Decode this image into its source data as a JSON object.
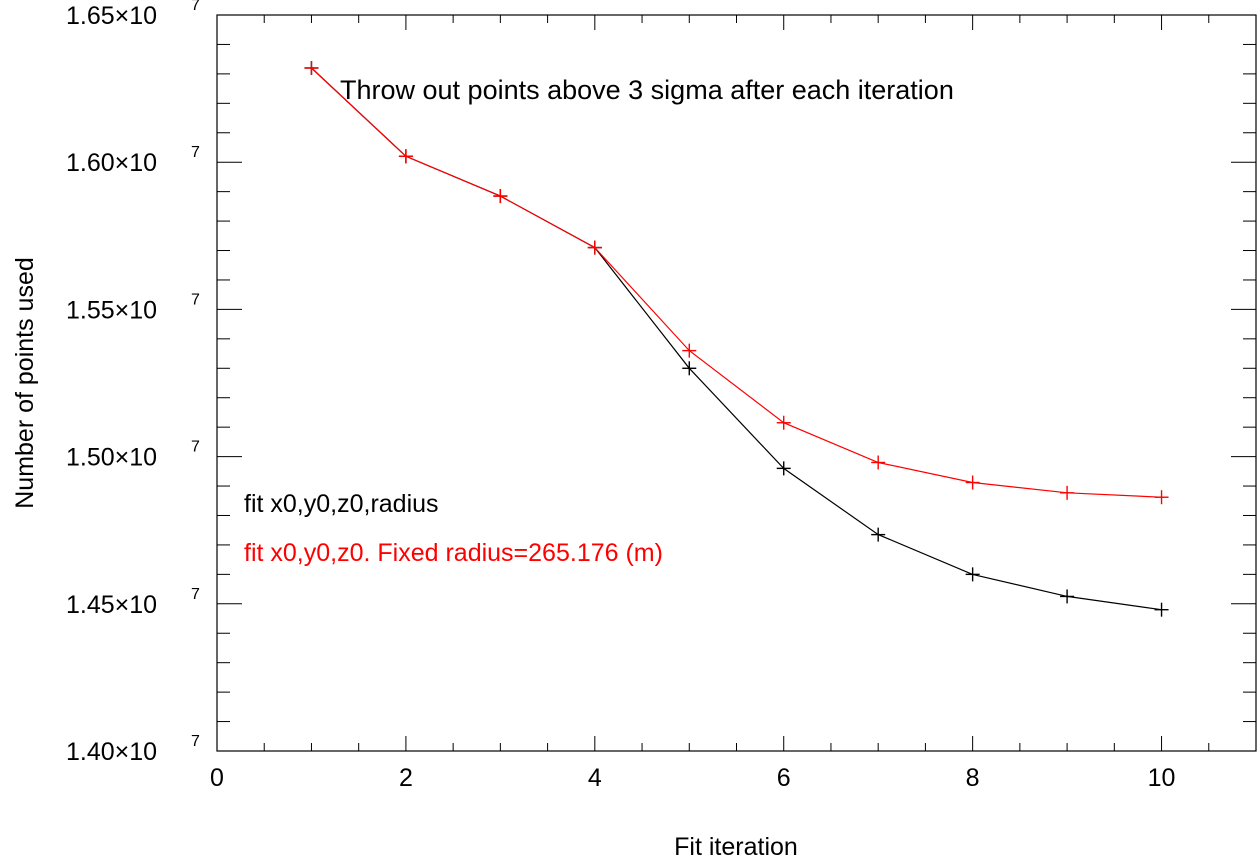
{
  "chart_data": {
    "type": "line",
    "title": "",
    "annotation": "Throw out points above 3 sigma after each iteration",
    "xlabel": "Fit iteration",
    "ylabel": "Number of points used",
    "xlim": [
      0,
      11
    ],
    "ylim": [
      14000000,
      16500000
    ],
    "x_ticks": [
      0,
      2,
      4,
      6,
      8,
      10
    ],
    "x_tick_labels": [
      "0",
      "2",
      "4",
      "6",
      "8",
      "10"
    ],
    "y_ticks": [
      14000000,
      14500000,
      15000000,
      15500000,
      16000000,
      16500000
    ],
    "y_tick_mantissas": [
      "1.40",
      "1.45",
      "1.50",
      "1.55",
      "1.60",
      "1.65"
    ],
    "y_tick_exponent": "7",
    "y_tick_mult": "×10",
    "x_minor_step": 0.5,
    "y_minor_step": 100000,
    "grid": false,
    "legend_position": "lower-left",
    "x": [
      1,
      2,
      3,
      4,
      5,
      6,
      7,
      8,
      9,
      10
    ],
    "series": [
      {
        "name": "fit x0,y0,z0,radius",
        "color": "#000000",
        "marker": "plus",
        "values": [
          16320000,
          16020000,
          15885000,
          15710000,
          15300000,
          14960000,
          14735000,
          14600000,
          14525000,
          14480000
        ]
      },
      {
        "name": "fit x0,y0,z0. Fixed radius=265.176 (m)",
        "color": "#ff0000",
        "marker": "plus",
        "values": [
          16320000,
          16020000,
          15885000,
          15710000,
          15360000,
          15115000,
          14980000,
          14912000,
          14877000,
          14862000
        ]
      }
    ]
  }
}
